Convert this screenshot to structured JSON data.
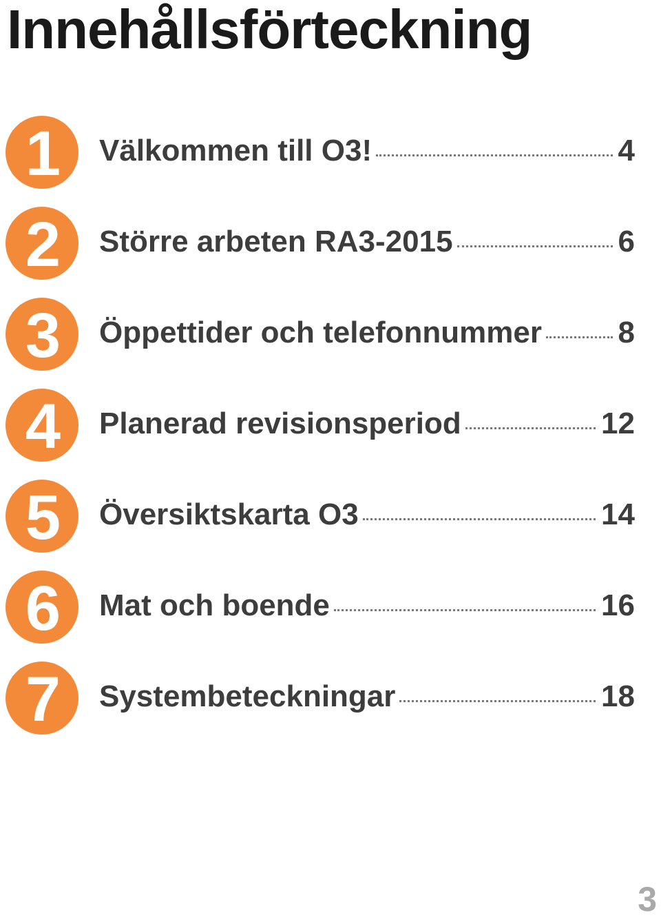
{
  "title": "Innehållsförteckning",
  "accent_color": "#f28a3a",
  "toc": [
    {
      "number": "1",
      "title": "Välkommen till O3!",
      "page": "4"
    },
    {
      "number": "2",
      "title": "Större arbeten RA3-2015",
      "page": "6"
    },
    {
      "number": "3",
      "title": "Öppettider och telefonnummer",
      "page": "8"
    },
    {
      "number": "4",
      "title": "Planerad revisionsperiod",
      "page": "12"
    },
    {
      "number": "5",
      "title": "Översiktskarta O3",
      "page": "14"
    },
    {
      "number": "6",
      "title": "Mat och boende",
      "page": "16"
    },
    {
      "number": "7",
      "title": "Systembeteckningar",
      "page": "18"
    }
  ],
  "page_number": "3"
}
